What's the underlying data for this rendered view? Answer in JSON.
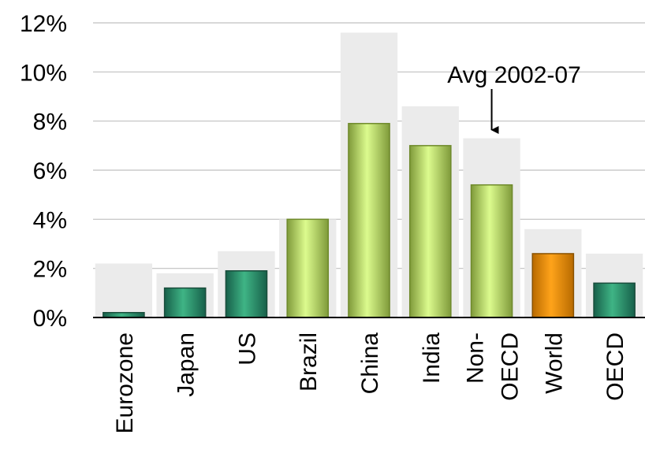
{
  "chart_data": {
    "type": "bar",
    "categories": [
      {
        "lines": [
          "Eurozone"
        ],
        "group": "oecd"
      },
      {
        "lines": [
          "Japan"
        ],
        "group": "oecd"
      },
      {
        "lines": [
          "US"
        ],
        "group": "oecd"
      },
      {
        "lines": [
          "Brazil"
        ],
        "group": "emerging"
      },
      {
        "lines": [
          "China"
        ],
        "group": "emerging"
      },
      {
        "lines": [
          "India"
        ],
        "group": "emerging"
      },
      {
        "lines": [
          "Non-",
          "OECD"
        ],
        "group": "emerging"
      },
      {
        "lines": [
          "World"
        ],
        "group": "world"
      },
      {
        "lines": [
          "OECD"
        ],
        "group": "oecd"
      }
    ],
    "series": [
      {
        "values": [
          0.2,
          1.2,
          1.9,
          4.0,
          7.9,
          7.0,
          5.4,
          2.6,
          1.4
        ]
      },
      {
        "values": [
          2.2,
          1.8,
          2.7,
          4.0,
          11.6,
          8.6,
          7.3,
          3.6,
          2.6
        ]
      }
    ],
    "ylim": [
      0,
      12
    ],
    "yticks": [
      0,
      2,
      4,
      6,
      8,
      10,
      12
    ],
    "ytick_labels": [
      "0%",
      "2%",
      "4%",
      "6%",
      "8%",
      "10%",
      "12%"
    ],
    "grid": true,
    "annotation": {
      "text": "Avg 2002-07",
      "category_index": 6
    },
    "colors": {
      "oecd": "#2e9a72",
      "emerging": "#c6e67a",
      "world": "#ff9900",
      "average": "#ebebeb",
      "grid": "#c0c0c0"
    }
  }
}
